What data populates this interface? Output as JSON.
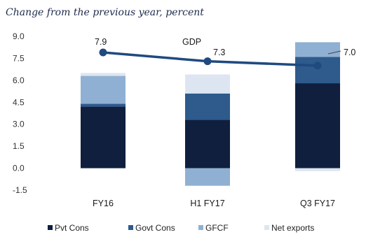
{
  "chart_data": {
    "type": "bar",
    "subtitle": "Change from the previous year, percent",
    "categories": [
      "FY16",
      "H1 FY17",
      "Q3 FY17"
    ],
    "ylim": [
      -1.5,
      9.0
    ],
    "yticks": [
      "9.0",
      "7.5",
      "6.0",
      "4.5",
      "3.0",
      "1.5",
      "0.0",
      "-1.5"
    ],
    "series": [
      {
        "name": "Pvt Cons",
        "color": "#0f1f3d",
        "values": [
          4.2,
          3.3,
          5.8
        ]
      },
      {
        "name": "Govt Cons",
        "color": "#2e5a8c",
        "values": [
          0.2,
          1.8,
          1.8
        ]
      },
      {
        "name": "GFCF",
        "color": "#8fb0d2",
        "values": [
          1.9,
          0.0,
          1.0
        ]
      },
      {
        "name": "Net exports",
        "color": "#dde6f0",
        "values": [
          0.2,
          1.3,
          -0.2
        ]
      }
    ],
    "negatives": [
      {
        "name": "GFCF",
        "category": "H1 FY17",
        "value": -1.2
      }
    ],
    "line": {
      "name": "GDP",
      "color": "#1f4a80",
      "values": [
        7.9,
        7.3,
        7.0
      ],
      "labels": [
        "7.9",
        "7.3",
        "7.0"
      ]
    },
    "legend_position": "bottom"
  }
}
